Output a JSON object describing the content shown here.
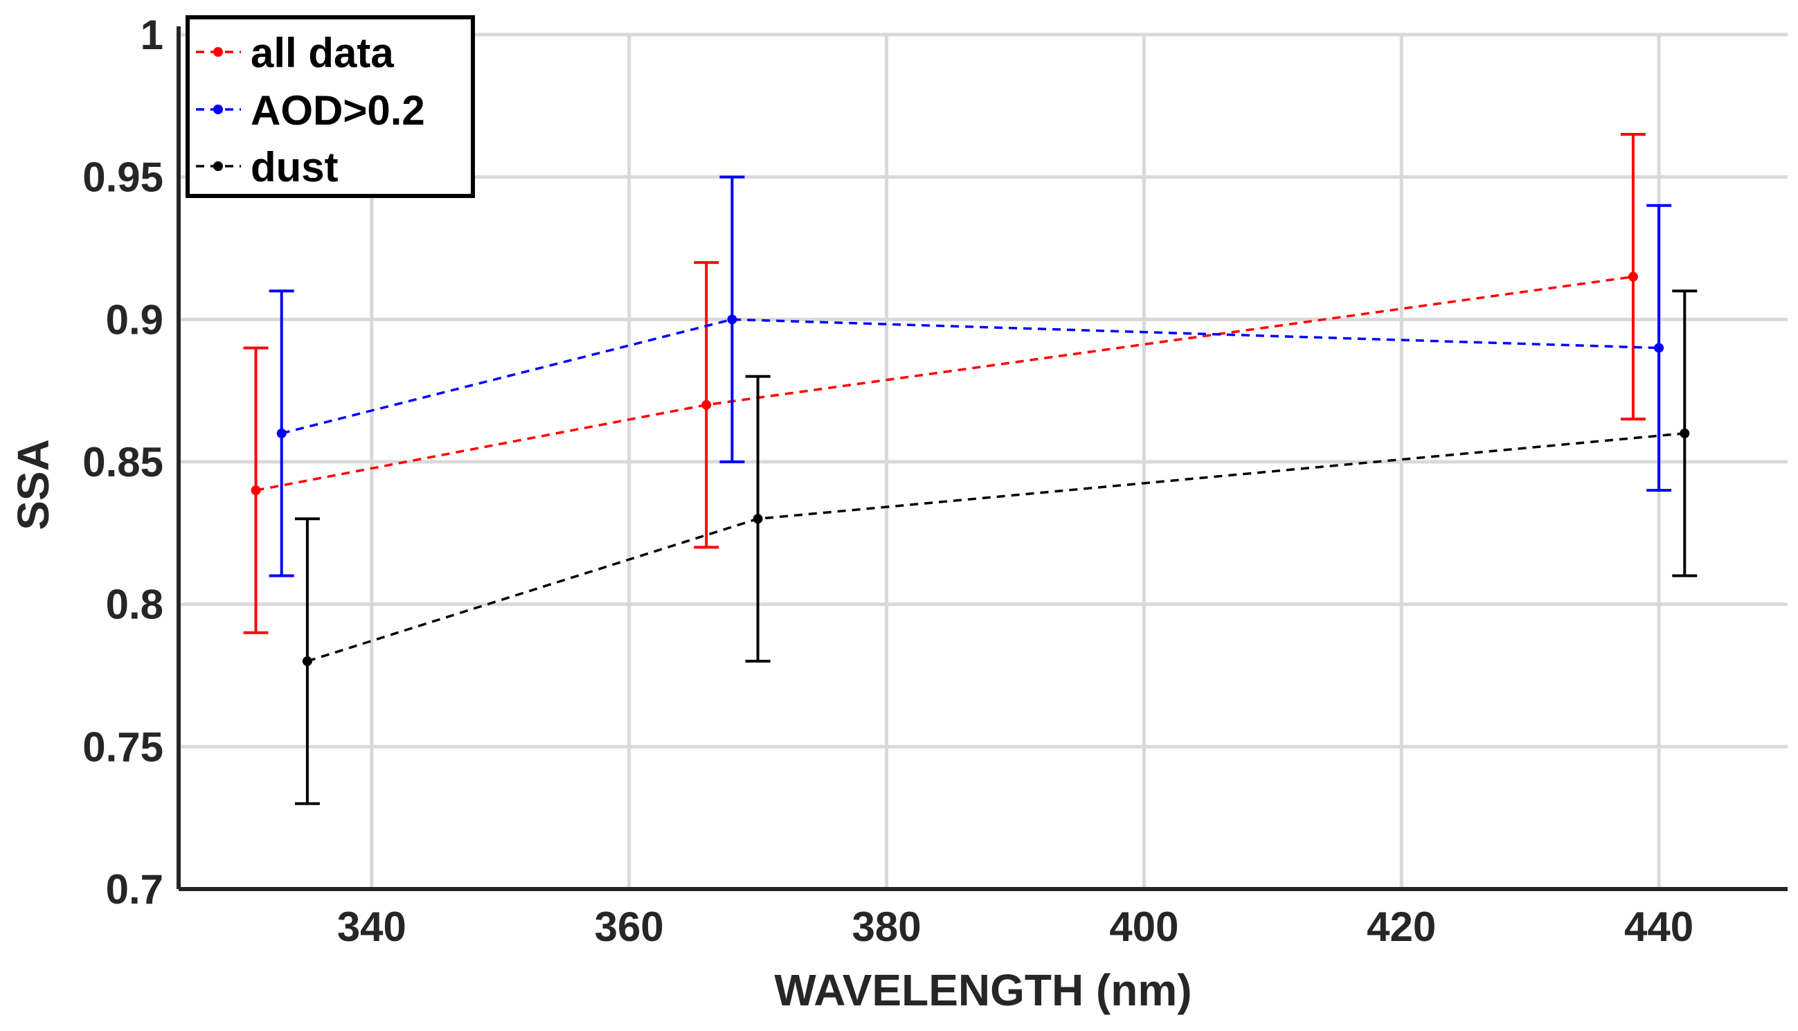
{
  "chart_data": {
    "type": "line",
    "title": "",
    "xlabel": "WAVELENGTH (nm)",
    "ylabel": "SSA",
    "xlim": [
      325,
      450
    ],
    "ylim": [
      0.7,
      1.0
    ],
    "xticks": [
      340,
      360,
      380,
      400,
      420,
      440
    ],
    "yticks": [
      0.7,
      0.75,
      0.8,
      0.85,
      0.9,
      0.95,
      1.0
    ],
    "xtick_labels": [
      "340",
      "360",
      "380",
      "400",
      "420",
      "440"
    ],
    "ytick_labels": [
      "0.7",
      "0.75",
      "0.8",
      "0.85",
      "0.9",
      "0.95",
      "1"
    ],
    "grid": true,
    "legend_position": "top-left",
    "line_style": "dashed",
    "series": [
      {
        "name": "all data",
        "color": "#ff0000",
        "x": [
          331,
          366,
          438
        ],
        "y": [
          0.84,
          0.87,
          0.915
        ],
        "err_low": [
          0.79,
          0.82,
          0.865
        ],
        "err_high": [
          0.89,
          0.92,
          0.965
        ]
      },
      {
        "name": "AOD>0.2",
        "color": "#0000ff",
        "x": [
          333,
          368,
          440
        ],
        "y": [
          0.86,
          0.9,
          0.89
        ],
        "err_low": [
          0.81,
          0.85,
          0.84
        ],
        "err_high": [
          0.91,
          0.95,
          0.94
        ]
      },
      {
        "name": "dust",
        "color": "#000000",
        "x": [
          335,
          370,
          442
        ],
        "y": [
          0.78,
          0.83,
          0.86
        ],
        "err_low": [
          0.73,
          0.78,
          0.81
        ],
        "err_high": [
          0.83,
          0.88,
          0.91
        ]
      }
    ]
  }
}
